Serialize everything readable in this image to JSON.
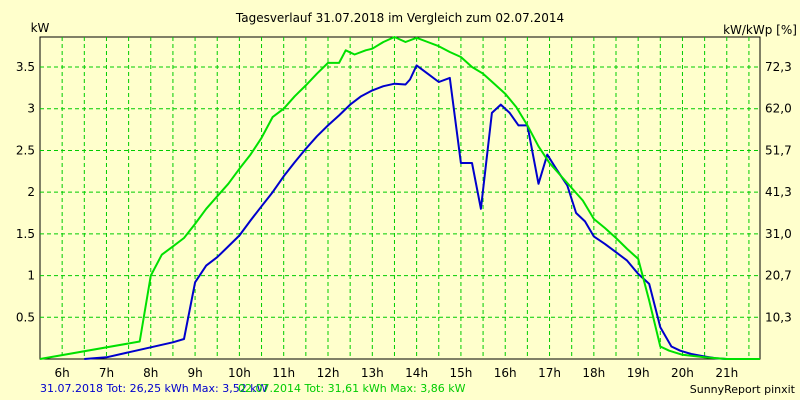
{
  "chart_data": {
    "type": "line",
    "title": "Tagesverlauf 31.07.2018 im Vergleich zum 02.07.2014",
    "ylabel_left": "kW",
    "ylabel_right": "kW/kWp [%]",
    "x_ticks": [
      "6h",
      "7h",
      "8h",
      "9h",
      "10h",
      "11h",
      "12h",
      "13h",
      "14h",
      "15h",
      "16h",
      "17h",
      "18h",
      "19h",
      "20h",
      "21h"
    ],
    "xlim": [
      5.5,
      21.75
    ],
    "ylim": [
      0,
      3.86
    ],
    "y_ticks": [
      "0.5",
      "1",
      "1.5",
      "2",
      "2.5",
      "3",
      "3.5"
    ],
    "y_ticks_right": [
      "10,3",
      "20,7",
      "31,0",
      "41,3",
      "51,7",
      "62,0",
      "72,3"
    ],
    "grid": true,
    "background_color": "#ffffcc",
    "grid_color": "#00cc00",
    "footer_left": "31.07.2018 Tot: 26,25 kWh Max: 3,52 kW",
    "footer_mid": "02.07.2014 Tot: 31,61 kWh Max: 3,86 kW",
    "footer_right": "SunnyReport pinxit",
    "series": [
      {
        "name": "31.07.2018",
        "color": "#0000cc",
        "x": [
          6.5,
          7.0,
          7.5,
          8.0,
          8.25,
          8.5,
          8.75,
          9.0,
          9.25,
          9.5,
          9.75,
          10.0,
          10.25,
          10.5,
          10.75,
          11.0,
          11.25,
          11.5,
          11.75,
          12.0,
          12.25,
          12.5,
          12.75,
          13.0,
          13.25,
          13.5,
          13.75,
          13.85,
          14.0,
          14.25,
          14.5,
          14.75,
          15.0,
          15.25,
          15.45,
          15.7,
          15.9,
          16.1,
          16.3,
          16.5,
          16.75,
          16.95,
          17.15,
          17.4,
          17.6,
          17.8,
          18.0,
          18.25,
          18.5,
          18.75,
          19.0,
          19.25,
          19.5,
          19.75,
          19.95,
          20.2,
          20.5,
          20.75,
          21.0,
          21.25,
          21.5
        ],
        "y": [
          0.0,
          0.02,
          0.08,
          0.14,
          0.17,
          0.2,
          0.24,
          0.92,
          1.12,
          1.22,
          1.35,
          1.48,
          1.66,
          1.83,
          2.0,
          2.19,
          2.36,
          2.52,
          2.67,
          2.8,
          2.92,
          3.05,
          3.15,
          3.22,
          3.27,
          3.3,
          3.29,
          3.35,
          3.52,
          3.42,
          3.32,
          3.37,
          2.35,
          2.35,
          1.8,
          2.95,
          3.05,
          2.95,
          2.8,
          2.8,
          2.1,
          2.45,
          2.28,
          2.08,
          1.75,
          1.65,
          1.47,
          1.38,
          1.28,
          1.18,
          1.02,
          0.9,
          0.38,
          0.15,
          0.1,
          0.06,
          0.03,
          0.01,
          0.0,
          0.0,
          0.0
        ]
      },
      {
        "name": "02.07.2014",
        "color": "#00e000",
        "x": [
          5.5,
          7.75,
          8.0,
          8.25,
          8.5,
          8.75,
          9.0,
          9.25,
          9.5,
          9.75,
          10.0,
          10.25,
          10.5,
          10.75,
          11.0,
          11.25,
          11.5,
          11.75,
          12.0,
          12.25,
          12.4,
          12.6,
          12.85,
          13.0,
          13.25,
          13.5,
          13.75,
          14.0,
          14.25,
          14.5,
          14.75,
          15.0,
          15.25,
          15.5,
          15.75,
          16.0,
          16.25,
          16.5,
          16.75,
          17.0,
          17.25,
          17.5,
          17.75,
          18.0,
          18.25,
          18.5,
          18.75,
          19.0,
          19.25,
          19.5,
          19.7,
          20.0,
          20.5,
          21.0,
          21.5,
          21.75
        ],
        "y": [
          0.0,
          0.21,
          1.0,
          1.25,
          1.35,
          1.45,
          1.62,
          1.8,
          1.95,
          2.1,
          2.28,
          2.45,
          2.65,
          2.9,
          3.0,
          3.15,
          3.28,
          3.42,
          3.55,
          3.55,
          3.7,
          3.65,
          3.7,
          3.72,
          3.8,
          3.86,
          3.8,
          3.85,
          3.8,
          3.75,
          3.68,
          3.62,
          3.5,
          3.42,
          3.3,
          3.18,
          3.02,
          2.8,
          2.55,
          2.35,
          2.2,
          2.05,
          1.9,
          1.68,
          1.57,
          1.45,
          1.32,
          1.2,
          0.7,
          0.15,
          0.1,
          0.05,
          0.02,
          0.0,
          0.0,
          0.0
        ]
      }
    ]
  }
}
